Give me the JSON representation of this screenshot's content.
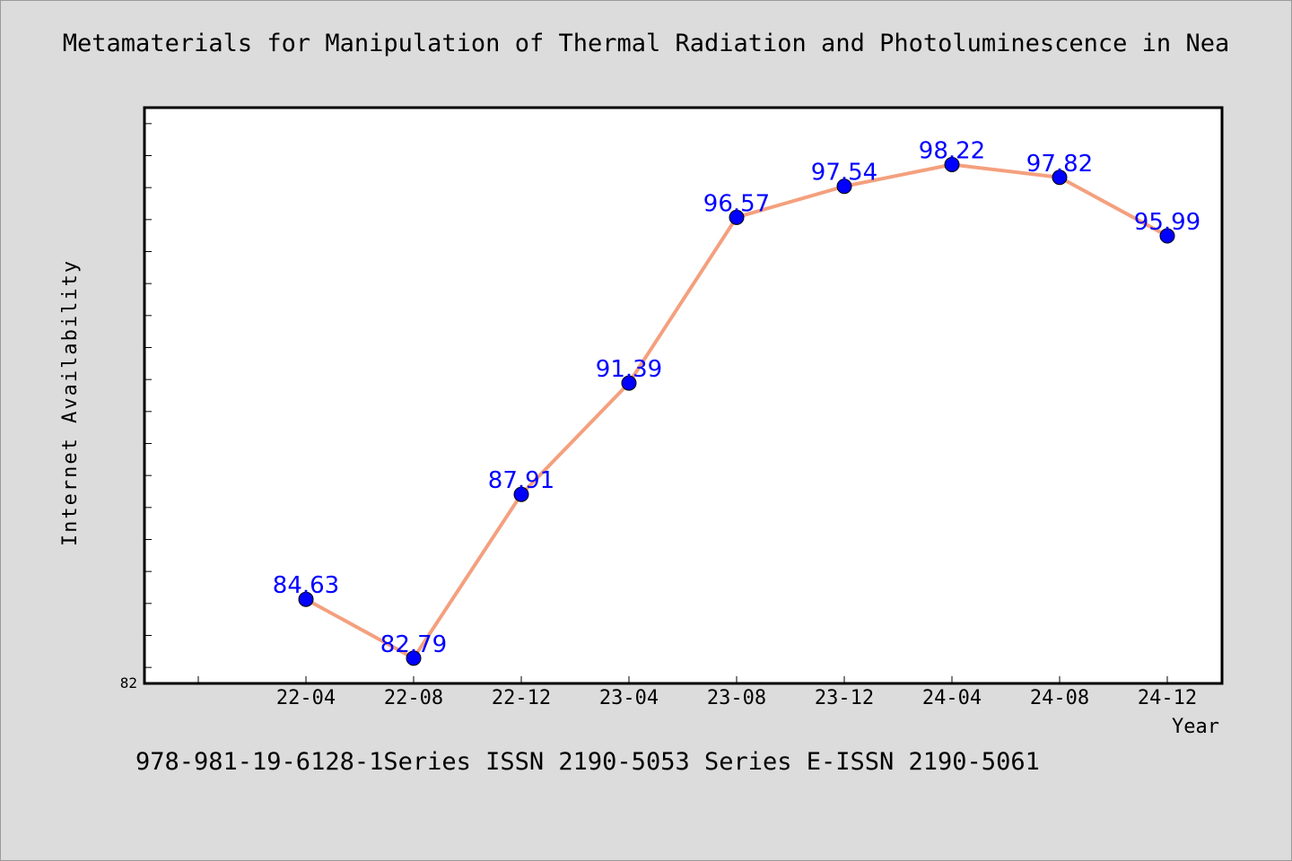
{
  "title": "Metamaterials for Manipulation of Thermal Radiation and Photoluminescence in Nea",
  "footer": "978-981-19-6128-1Series ISSN 2190-5053 Series E-ISSN 2190-5061",
  "colors": {
    "background": "#dcdcdc",
    "plot_area": "#ffffff",
    "line": "#f4a07e",
    "marker": "#0000ff",
    "label": "#0000ff"
  },
  "chart_data": {
    "type": "line",
    "title": "Metamaterials for Manipulation of Thermal Radiation and Photoluminescence in Nea",
    "xlabel": "Year",
    "ylabel": "Internet Availability",
    "categories": [
      "22-04",
      "22-08",
      "22-12",
      "23-04",
      "23-08",
      "23-12",
      "24-04",
      "24-08",
      "24-12"
    ],
    "series": [
      {
        "values": [
          84.63,
          82.79,
          87.91,
          91.39,
          96.57,
          97.54,
          98.22,
          97.82,
          95.99
        ],
        "labels": [
          "84.63",
          "82.79",
          "87.91",
          "91.39",
          "96.57",
          "97.54",
          "98.22",
          "97.82",
          "95.99"
        ]
      }
    ],
    "ylim": [
      82,
      100
    ],
    "y_tick_labels": [
      "82"
    ],
    "grid": false,
    "legend": "none"
  }
}
